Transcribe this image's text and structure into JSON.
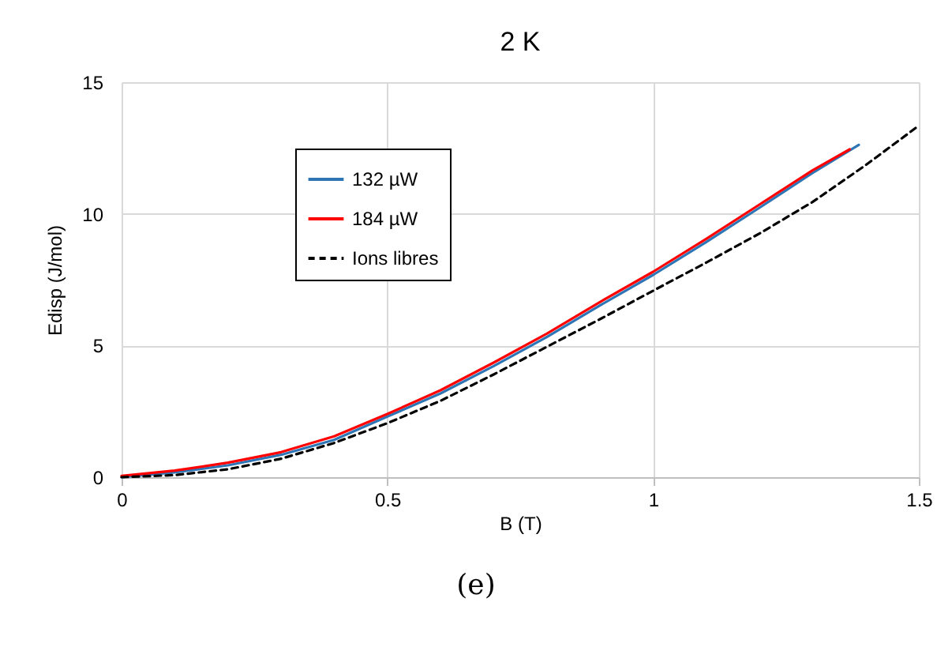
{
  "chart_data": {
    "type": "line",
    "title": "2 K",
    "xlabel": "B (T)",
    "ylabel": "Edisp (J/mol)",
    "xlim": [
      0,
      1.5
    ],
    "xticks": [
      0,
      0.5,
      1,
      1.5
    ],
    "ylim": [
      0,
      15
    ],
    "yticks": [
      0,
      5,
      10,
      15
    ],
    "grid": true,
    "legend": "top left",
    "annotations": [
      "(e)"
    ],
    "series": [
      {
        "name": "132 µW",
        "color": "#2e75b6",
        "line_style": "solid",
        "x": [
          0,
          0.1,
          0.2,
          0.3,
          0.4,
          0.5,
          0.6,
          0.7,
          0.8,
          0.9,
          1.0,
          1.1,
          1.2,
          1.3,
          1.387
        ],
        "values": [
          0,
          0.18,
          0.45,
          0.85,
          1.42,
          2.3,
          3.18,
          4.22,
          5.32,
          6.52,
          7.68,
          8.93,
          10.23,
          11.55,
          12.62
        ]
      },
      {
        "name": "184 µW",
        "color": "#ff0000",
        "line_style": "solid",
        "x": [
          0,
          0.1,
          0.2,
          0.3,
          0.4,
          0.5,
          0.6,
          0.7,
          0.8,
          0.9,
          1.0,
          1.1,
          1.2,
          1.3,
          1.37
        ],
        "values": [
          0.05,
          0.25,
          0.55,
          0.95,
          1.55,
          2.4,
          3.3,
          4.35,
          5.45,
          6.65,
          7.8,
          9.05,
          10.35,
          11.65,
          12.45
        ]
      },
      {
        "name": "Ions libres",
        "color": "#000000",
        "line_style": "dashed",
        "x": [
          0,
          0.1,
          0.2,
          0.3,
          0.4,
          0.5,
          0.6,
          0.7,
          0.8,
          0.9,
          1.0,
          1.1,
          1.2,
          1.3,
          1.4,
          1.5
        ],
        "values": [
          0,
          0.08,
          0.3,
          0.7,
          1.3,
          2.05,
          2.9,
          3.9,
          4.95,
          6.0,
          7.08,
          8.15,
          9.25,
          10.45,
          11.85,
          13.35
        ]
      }
    ]
  }
}
